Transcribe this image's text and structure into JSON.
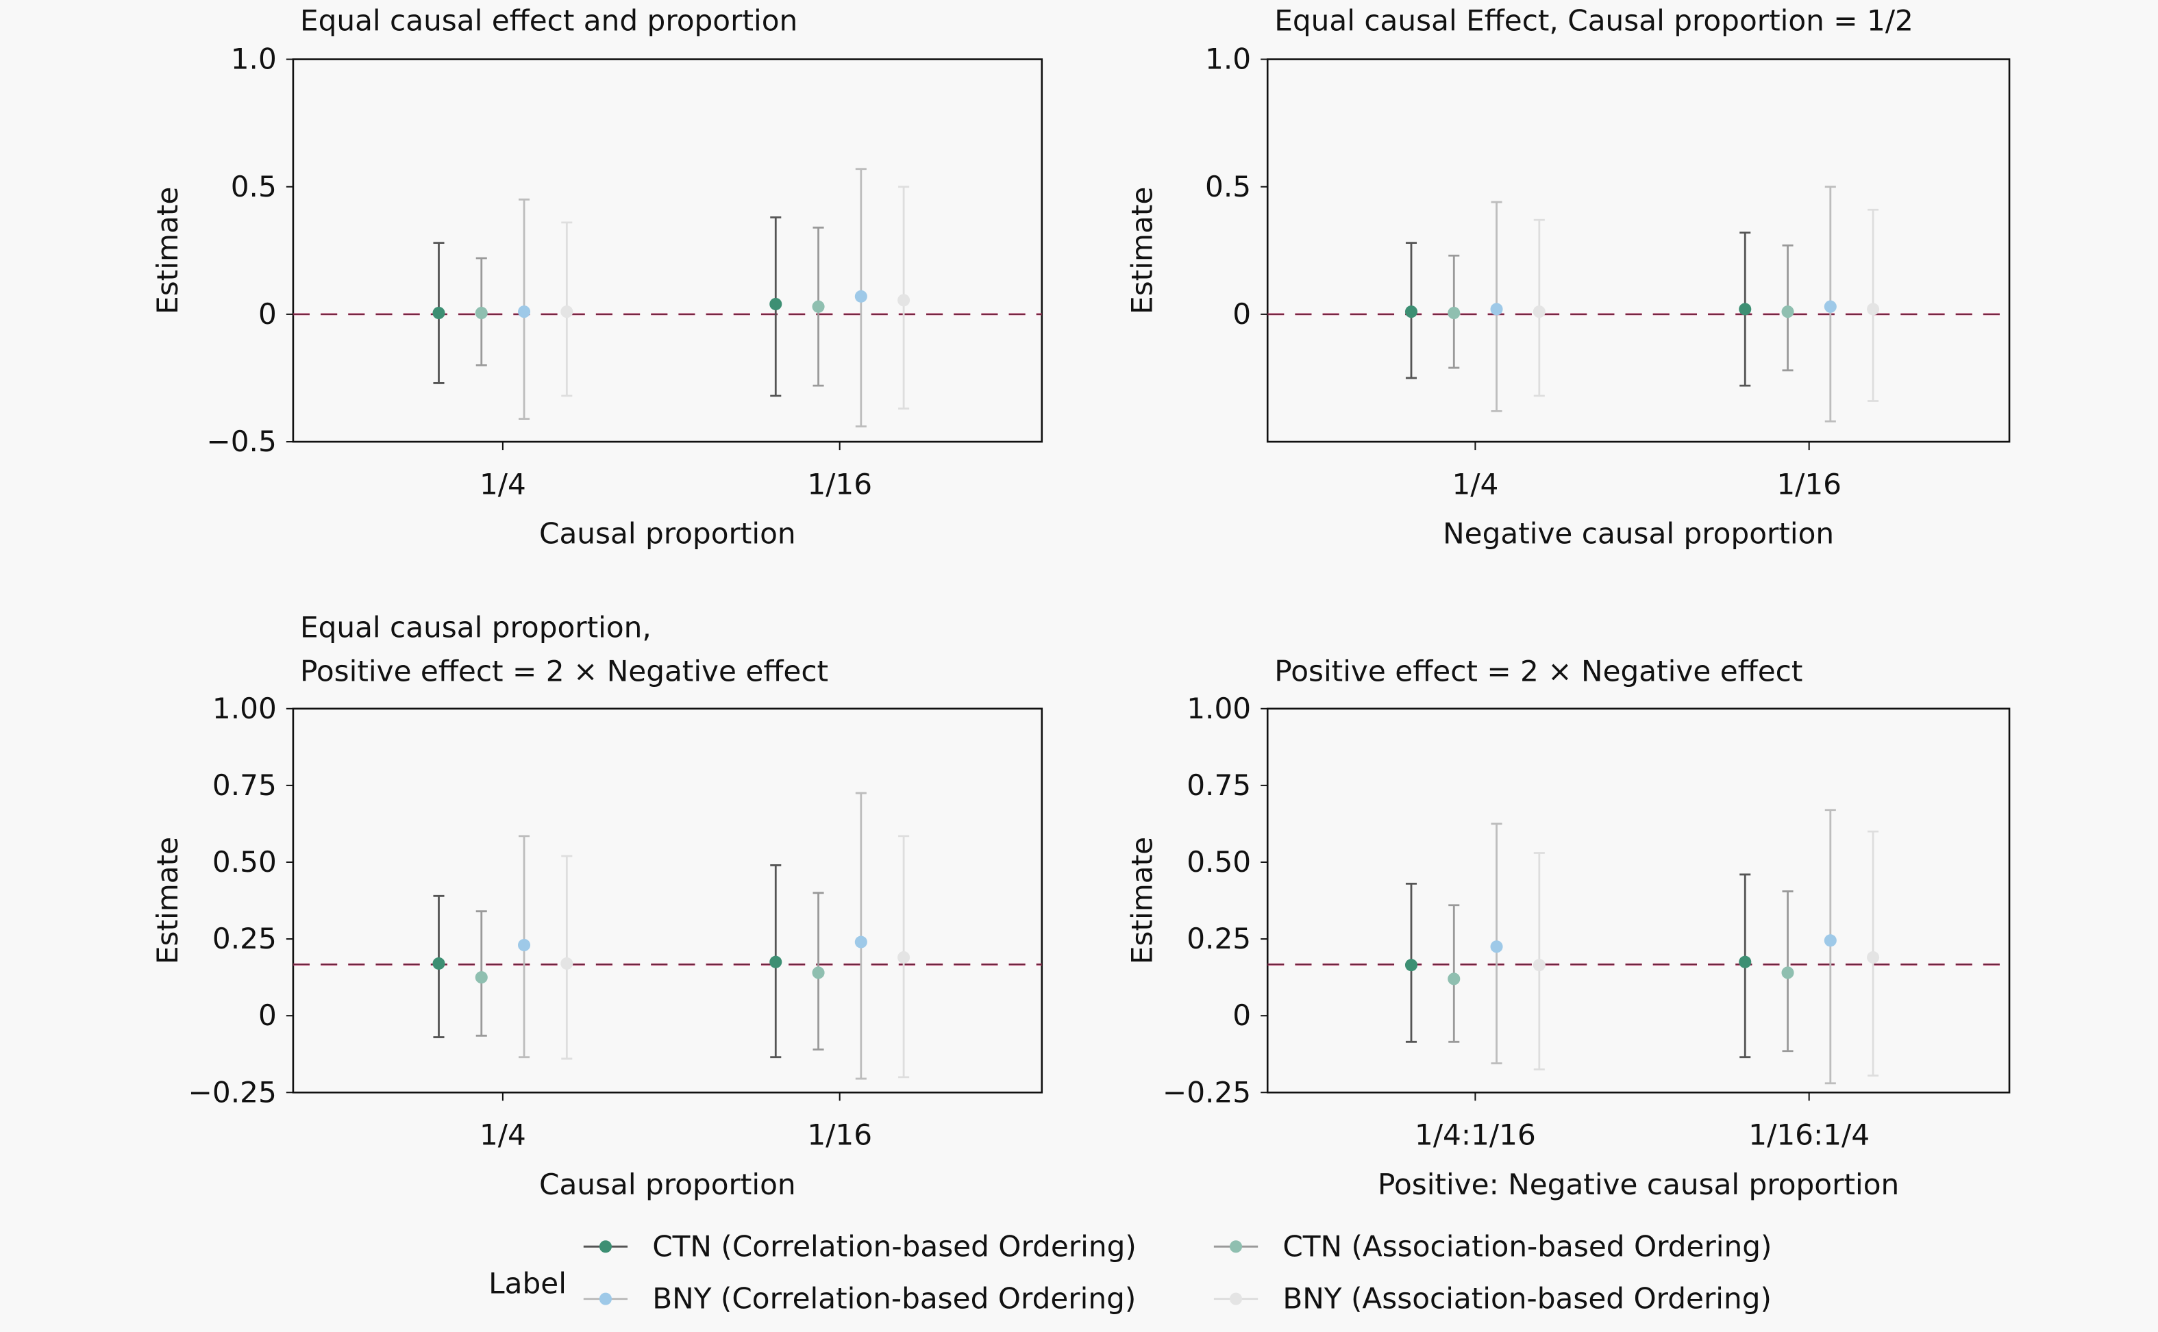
{
  "legend": {
    "title": "Label",
    "entries": [
      "CTN (Correlation-based Ordering)",
      "CTN (Association-based Ordering)",
      "BNY (Correlation-based Ordering)",
      "BNY (Association-based Ordering)"
    ]
  },
  "colors": {
    "points": [
      "#3d8f73",
      "#8fbfb0",
      "#9ec9e8",
      "#e4e4e4"
    ],
    "bars": [
      "#555555",
      "#9a9a9a",
      "#bdbdbd",
      "#dedede"
    ],
    "reference": "#d6336c",
    "background": "#f8f8f8"
  },
  "chart_data": [
    {
      "type": "scatter",
      "title": [
        "Equal causal effect and proportion"
      ],
      "xlabel": "Causal proportion",
      "ylabel": "Estimate",
      "categories": [
        "1/4",
        "1/16"
      ],
      "ylim": [
        -0.5,
        1.0
      ],
      "yticks": [
        -0.5,
        0,
        0.5,
        1.0
      ],
      "ytick_labels": [
        "−0.5",
        "0",
        "0.5",
        "1.0"
      ],
      "reference_line": 0,
      "series": [
        {
          "name": "CTN (Correlation-based Ordering)",
          "values": [
            0.005,
            0.04
          ],
          "lower": [
            -0.27,
            -0.32
          ],
          "upper": [
            0.28,
            0.38
          ]
        },
        {
          "name": "CTN (Association-based Ordering)",
          "values": [
            0.005,
            0.03
          ],
          "lower": [
            -0.2,
            -0.28
          ],
          "upper": [
            0.22,
            0.34
          ]
        },
        {
          "name": "BNY (Correlation-based Ordering)",
          "values": [
            0.01,
            0.07
          ],
          "lower": [
            -0.41,
            -0.44
          ],
          "upper": [
            0.45,
            0.57
          ]
        },
        {
          "name": "BNY (Association-based Ordering)",
          "values": [
            0.01,
            0.055
          ],
          "lower": [
            -0.32,
            -0.37
          ],
          "upper": [
            0.36,
            0.5
          ]
        }
      ]
    },
    {
      "type": "scatter",
      "title": [
        "Equal causal Effect, Causal proportion = 1/2"
      ],
      "xlabel": "Negative causal proportion",
      "ylabel": "Estimate",
      "categories": [
        "1/4",
        "1/16"
      ],
      "ylim": [
        -0.5,
        1.0
      ],
      "yticks": [
        0,
        0.5,
        1.0
      ],
      "ytick_labels": [
        "0",
        "0.5",
        "1.0"
      ],
      "reference_line": 0,
      "series": [
        {
          "name": "CTN (Correlation-based Ordering)",
          "values": [
            0.01,
            0.02
          ],
          "lower": [
            -0.25,
            -0.28
          ],
          "upper": [
            0.28,
            0.32
          ]
        },
        {
          "name": "CTN (Association-based Ordering)",
          "values": [
            0.005,
            0.01
          ],
          "lower": [
            -0.21,
            -0.22
          ],
          "upper": [
            0.23,
            0.27
          ]
        },
        {
          "name": "BNY (Correlation-based Ordering)",
          "values": [
            0.02,
            0.03
          ],
          "lower": [
            -0.38,
            -0.42
          ],
          "upper": [
            0.44,
            0.5
          ]
        },
        {
          "name": "BNY (Association-based Ordering)",
          "values": [
            0.01,
            0.02
          ],
          "lower": [
            -0.32,
            -0.34
          ],
          "upper": [
            0.37,
            0.41
          ]
        }
      ]
    },
    {
      "type": "scatter",
      "title": [
        "Equal causal proportion,",
        "Positive effect = 2 × Negative effect"
      ],
      "xlabel": "Causal proportion",
      "ylabel": "Estimate",
      "categories": [
        "1/4",
        "1/16"
      ],
      "ylim": [
        -0.25,
        1.0
      ],
      "yticks": [
        -0.25,
        0,
        0.25,
        0.5,
        0.75,
        1.0
      ],
      "ytick_labels": [
        "−0.25",
        "0",
        "0.25",
        "0.50",
        "0.75",
        "1.00"
      ],
      "reference_line": 0.167,
      "series": [
        {
          "name": "CTN (Correlation-based Ordering)",
          "values": [
            0.17,
            0.175
          ],
          "lower": [
            -0.07,
            -0.135
          ],
          "upper": [
            0.39,
            0.49
          ]
        },
        {
          "name": "CTN (Association-based Ordering)",
          "values": [
            0.125,
            0.14
          ],
          "lower": [
            -0.065,
            -0.11
          ],
          "upper": [
            0.34,
            0.4
          ]
        },
        {
          "name": "BNY (Correlation-based Ordering)",
          "values": [
            0.23,
            0.24
          ],
          "lower": [
            -0.135,
            -0.205
          ],
          "upper": [
            0.585,
            0.725
          ]
        },
        {
          "name": "BNY (Association-based Ordering)",
          "values": [
            0.17,
            0.19
          ],
          "lower": [
            -0.14,
            -0.2
          ],
          "upper": [
            0.52,
            0.585
          ]
        }
      ]
    },
    {
      "type": "scatter",
      "title": [
        "Positive effect = 2 × Negative effect"
      ],
      "xlabel": "Positive: Negative causal proportion",
      "ylabel": "Estimate",
      "categories": [
        "1/4:1/16",
        "1/16:1/4"
      ],
      "ylim": [
        -0.25,
        1.0
      ],
      "yticks": [
        -0.25,
        0,
        0.25,
        0.5,
        0.75,
        1.0
      ],
      "ytick_labels": [
        "−0.25",
        "0",
        "0.25",
        "0.50",
        "0.75",
        "1.00"
      ],
      "reference_line": 0.167,
      "series": [
        {
          "name": "CTN (Correlation-based Ordering)",
          "values": [
            0.165,
            0.175
          ],
          "lower": [
            -0.085,
            -0.135
          ],
          "upper": [
            0.43,
            0.46
          ]
        },
        {
          "name": "CTN (Association-based Ordering)",
          "values": [
            0.12,
            0.14
          ],
          "lower": [
            -0.085,
            -0.115
          ],
          "upper": [
            0.36,
            0.405
          ]
        },
        {
          "name": "BNY (Correlation-based Ordering)",
          "values": [
            0.225,
            0.245
          ],
          "lower": [
            -0.155,
            -0.22
          ],
          "upper": [
            0.625,
            0.67
          ]
        },
        {
          "name": "BNY (Association-based Ordering)",
          "values": [
            0.165,
            0.19
          ],
          "lower": [
            -0.175,
            -0.195
          ],
          "upper": [
            0.53,
            0.6
          ]
        }
      ]
    }
  ]
}
